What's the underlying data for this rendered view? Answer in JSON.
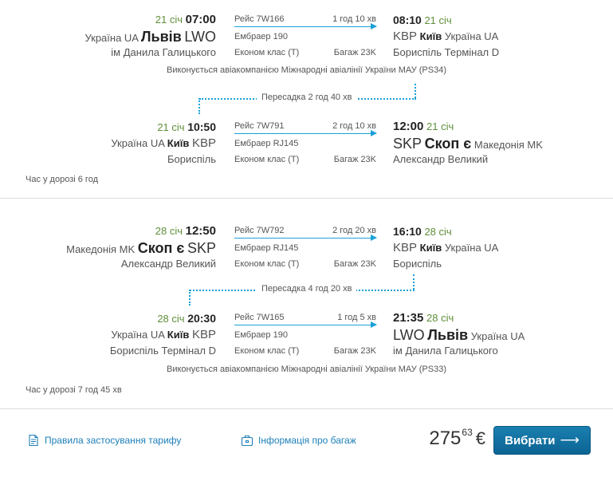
{
  "outbound": {
    "leg1": {
      "dep_date": "21 січ",
      "dep_time": "07:00",
      "dep_country": "Україна UA",
      "dep_city": "Львів",
      "dep_code": "LWO",
      "dep_airport": "ім Данила Галицького",
      "flight": "Рейс 7W166",
      "duration": "1 год 10 хв",
      "aircraft": "Ембраер 190",
      "class": "Економ клас (T)",
      "baggage": "Багаж 23K",
      "arr_time": "08:10",
      "arr_date": "21 січ",
      "arr_code": "KBP",
      "arr_city": "Київ",
      "arr_country": "Україна UA",
      "arr_airport": "Бориспіль Термінал D"
    },
    "operated_by": "Виконується авіакомпанією Міжнародні авіалінії України МАУ (PS34)",
    "transfer": "Пересадка 2 год 40 хв",
    "leg2": {
      "dep_date": "21 січ",
      "dep_time": "10:50",
      "dep_country": "Україна UA",
      "dep_city": "Київ",
      "dep_code": "KBP",
      "dep_airport": "Бориспіль",
      "flight": "Рейс 7W791",
      "duration": "2 год 10 хв",
      "aircraft": "Ембраер RJ145",
      "class": "Економ клас (T)",
      "baggage": "Багаж 23K",
      "arr_time": "12:00",
      "arr_date": "21 січ",
      "arr_code": "SKP",
      "arr_city": "Скоп є",
      "arr_country": "Македонія MK",
      "arr_airport": "Александр Великий"
    },
    "travel_time": "Час у дорозі 6 год"
  },
  "return": {
    "leg1": {
      "dep_date": "28 січ",
      "dep_time": "12:50",
      "dep_country": "Македонія MK",
      "dep_city": "Скоп є",
      "dep_code": "SKP",
      "dep_airport": "Александр Великий",
      "flight": "Рейс 7W792",
      "duration": "2 год 20 хв",
      "aircraft": "Ембраер RJ145",
      "class": "Економ клас (T)",
      "baggage": "Багаж 23K",
      "arr_time": "16:10",
      "arr_date": "28 січ",
      "arr_code": "KBP",
      "arr_city": "Київ",
      "arr_country": "Україна UA",
      "arr_airport": "Бориспіль"
    },
    "transfer": "Пересадка 4 год 20 хв",
    "leg2": {
      "dep_date": "28 січ",
      "dep_time": "20:30",
      "dep_country": "Україна UA",
      "dep_city": "Київ",
      "dep_code": "KBP",
      "dep_airport": "Бориспіль Термінал D",
      "flight": "Рейс 7W165",
      "duration": "1 год 5 хв",
      "aircraft": "Ембраер 190",
      "class": "Економ клас (T)",
      "baggage": "Багаж 23K",
      "arr_time": "21:35",
      "arr_date": "28 січ",
      "arr_code": "LWO",
      "arr_city": "Львів",
      "arr_country": "Україна UA",
      "arr_airport": "ім Данила Галицького"
    },
    "operated_by": "Виконується авіакомпанією Міжнародні авіалінії України МАУ (PS33)",
    "travel_time": "Час у дорозі 7 год 45 хв"
  },
  "footer": {
    "fare_rules": "Правила застосування тарифу",
    "baggage_info": "Інформація про багаж",
    "price_int": "275",
    "price_dec": "63",
    "currency": "€",
    "select_label": "Вибрати",
    "select_arrow": "⟶"
  },
  "icons": {
    "fare_rules": "document-icon",
    "baggage": "suitcase-icon"
  },
  "colors": {
    "accent": "#1aa1d8",
    "button": "#0c6493",
    "date": "#5f8f3a",
    "link": "#1d7fb8"
  }
}
